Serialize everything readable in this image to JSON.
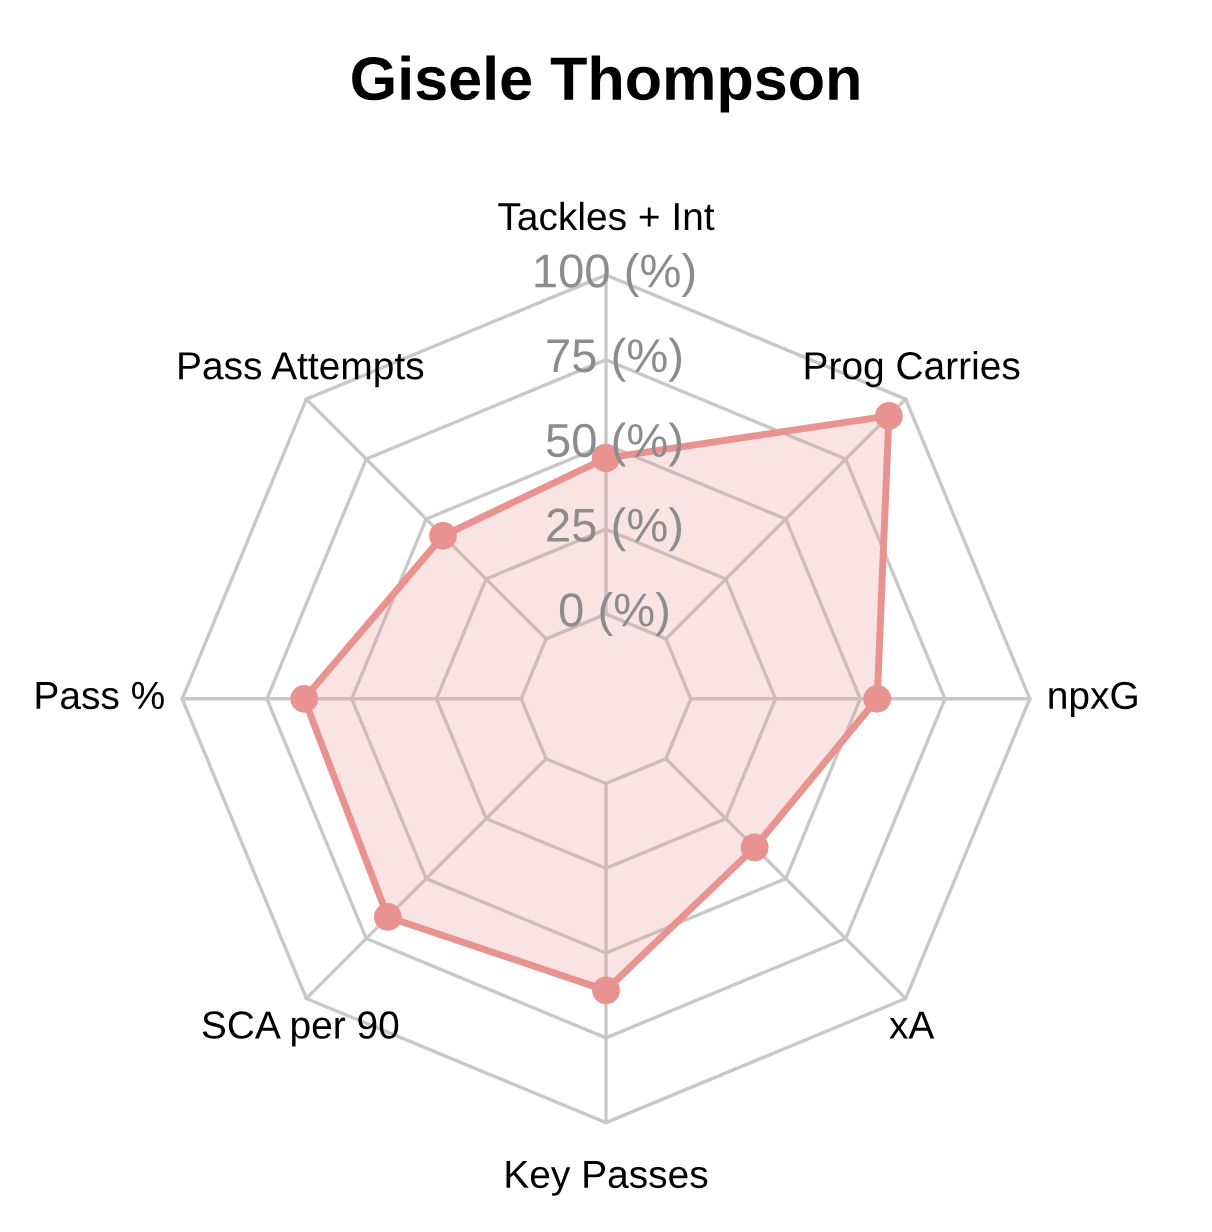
{
  "chart_data": {
    "type": "radar",
    "title": "Gisele Thompson",
    "categories": [
      "Tackles + Int",
      "Prog Carries",
      "npxG",
      "xA",
      "Key Passes",
      "SCA per 90",
      "Pass %",
      "Pass Attempts"
    ],
    "series": [
      {
        "color": "#e8938f",
        "values": [
          46,
          93,
          55,
          37,
          61,
          66,
          64,
          43
        ]
      }
    ],
    "ylim": [
      -25,
      100
    ],
    "yticks": [
      {
        "value": 0,
        "label": "0 (%)"
      },
      {
        "value": 25,
        "label": "25 (%)"
      },
      {
        "value": 50,
        "label": "50 (%)"
      },
      {
        "value": 75,
        "label": "75 (%)"
      },
      {
        "value": 100,
        "label": "100 (%)"
      }
    ],
    "marker": "circle",
    "grid": true,
    "legend": false
  }
}
